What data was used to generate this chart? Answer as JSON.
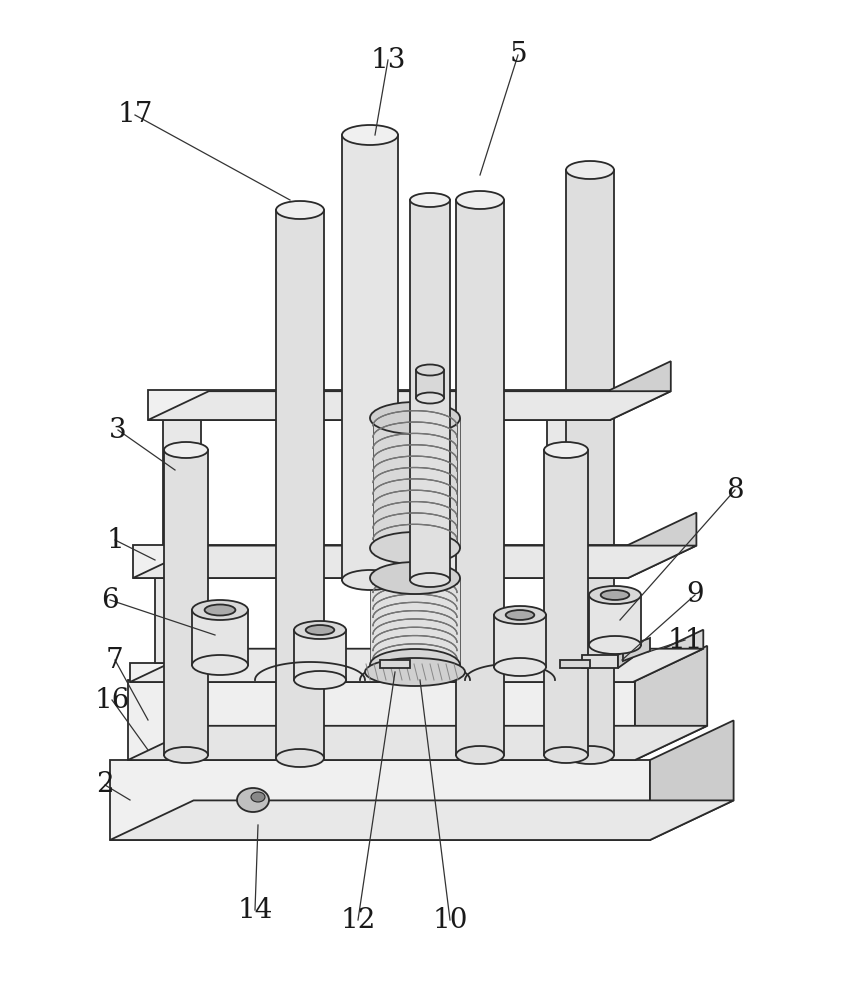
{
  "background_color": "#ffffff",
  "line_color": "#2a2a2a",
  "label_color": "#1a1a1a",
  "label_fontsize": 20,
  "ann_fontsize": 20,
  "lw_main": 1.3,
  "face_light": "#f5f5f5",
  "face_mid": "#e8e8e8",
  "face_dark": "#d5d5d5",
  "face_top": "#efefef"
}
